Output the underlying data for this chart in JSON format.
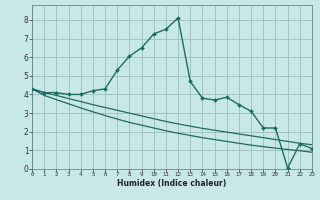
{
  "xlabel": "Humidex (Indice chaleur)",
  "background_color": "#c8e8e8",
  "grid_color": "#9bbdbd",
  "line_color": "#1e6b62",
  "xlim": [
    0,
    23
  ],
  "ylim": [
    0,
    8.8
  ],
  "xtick_vals": [
    0,
    1,
    2,
    3,
    4,
    5,
    6,
    7,
    8,
    9,
    10,
    11,
    12,
    13,
    14,
    15,
    16,
    17,
    18,
    19,
    20,
    21,
    22,
    23
  ],
  "ytick_vals": [
    0,
    1,
    2,
    3,
    4,
    5,
    6,
    7,
    8
  ],
  "humidex_x": [
    0,
    1,
    2,
    3,
    4,
    5,
    6,
    7,
    8,
    9,
    10,
    11,
    12,
    13,
    14,
    15,
    16,
    17,
    18,
    19,
    20,
    21,
    22,
    23
  ],
  "humidex_y": [
    4.3,
    4.1,
    4.1,
    4.0,
    4.0,
    4.2,
    4.3,
    5.3,
    6.05,
    6.5,
    7.25,
    7.5,
    8.1,
    4.7,
    3.8,
    3.7,
    3.85,
    3.45,
    3.1,
    2.2,
    2.2,
    0.05,
    1.35,
    1.1
  ],
  "bound_upper_y": [
    4.3,
    4.1,
    3.95,
    3.78,
    3.62,
    3.45,
    3.3,
    3.15,
    3.0,
    2.85,
    2.7,
    2.55,
    2.42,
    2.3,
    2.18,
    2.08,
    1.98,
    1.88,
    1.78,
    1.68,
    1.58,
    1.48,
    1.38,
    1.3
  ],
  "bound_lower_y": [
    4.3,
    3.95,
    3.72,
    3.5,
    3.28,
    3.07,
    2.87,
    2.68,
    2.5,
    2.35,
    2.2,
    2.05,
    1.92,
    1.8,
    1.68,
    1.58,
    1.48,
    1.38,
    1.28,
    1.2,
    1.12,
    1.05,
    0.98,
    0.9
  ]
}
